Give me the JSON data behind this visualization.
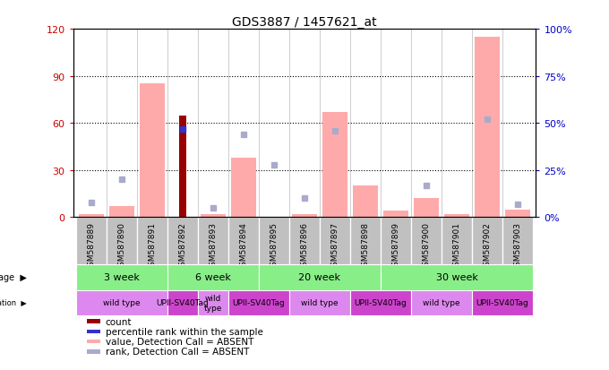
{
  "title": "GDS3887 / 1457621_at",
  "samples": [
    "GSM587889",
    "GSM587890",
    "GSM587891",
    "GSM587892",
    "GSM587893",
    "GSM587894",
    "GSM587895",
    "GSM587896",
    "GSM587897",
    "GSM587898",
    "GSM587899",
    "GSM587900",
    "GSM587901",
    "GSM587902",
    "GSM587903"
  ],
  "count": [
    null,
    null,
    null,
    65,
    null,
    null,
    null,
    null,
    null,
    null,
    null,
    null,
    null,
    null,
    null
  ],
  "percentile_rank": [
    null,
    null,
    null,
    47,
    null,
    null,
    null,
    null,
    null,
    null,
    null,
    null,
    null,
    null,
    null
  ],
  "value_absent": [
    2,
    7,
    85,
    null,
    2,
    38,
    null,
    2,
    67,
    20,
    4,
    12,
    2,
    115,
    5
  ],
  "rank_absent": [
    8,
    20,
    null,
    null,
    5,
    44,
    28,
    10,
    46,
    null,
    null,
    17,
    null,
    52,
    7
  ],
  "ylim_left": [
    0,
    120
  ],
  "ylim_right": [
    0,
    100
  ],
  "yticks_left": [
    0,
    30,
    60,
    90,
    120
  ],
  "yticks_right": [
    0,
    25,
    50,
    75,
    100
  ],
  "ytick_labels_left": [
    "0",
    "30",
    "60",
    "90",
    "120"
  ],
  "ytick_labels_right": [
    "0%",
    "25%",
    "50%",
    "75%",
    "100%"
  ],
  "left_tick_color": "#cc0000",
  "right_tick_color": "#0000cc",
  "color_count": "#990000",
  "color_rank": "#3333cc",
  "color_value_absent": "#ffaaaa",
  "color_rank_absent": "#aaaacc",
  "age_groups": [
    {
      "label": "3 week",
      "start": 0,
      "end": 3
    },
    {
      "label": "6 week",
      "start": 3,
      "end": 6
    },
    {
      "label": "20 week",
      "start": 6,
      "end": 10
    },
    {
      "label": "30 week",
      "start": 10,
      "end": 15
    }
  ],
  "age_color": "#88ee88",
  "genotype_groups": [
    {
      "label": "wild type",
      "start": 0,
      "end": 3,
      "color": "#dd88ee"
    },
    {
      "label": "UPII-SV40Tag",
      "start": 3,
      "end": 4,
      "color": "#cc44cc"
    },
    {
      "label": "wild\ntype",
      "start": 4,
      "end": 5,
      "color": "#dd88ee"
    },
    {
      "label": "UPII-SV40Tag",
      "start": 5,
      "end": 7,
      "color": "#cc44cc"
    },
    {
      "label": "wild type",
      "start": 7,
      "end": 9,
      "color": "#dd88ee"
    },
    {
      "label": "UPII-SV40Tag",
      "start": 9,
      "end": 11,
      "color": "#cc44cc"
    },
    {
      "label": "wild type",
      "start": 11,
      "end": 13,
      "color": "#dd88ee"
    },
    {
      "label": "UPII-SV40Tag",
      "start": 13,
      "end": 15,
      "color": "#cc44cc"
    }
  ],
  "sample_box_color": "#c0c0c0",
  "bar_width": 0.5
}
